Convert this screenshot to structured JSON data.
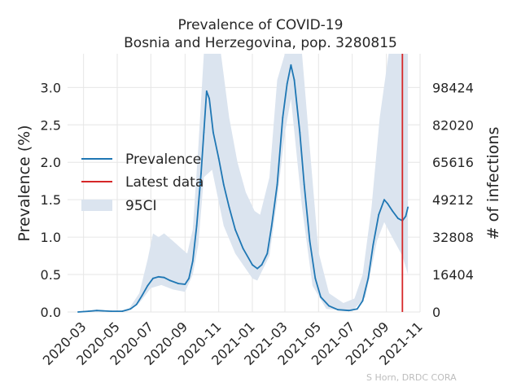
{
  "chart_data": {
    "type": "line",
    "title": "Prevalence of COVID-19",
    "subtitle": "Bosnia and Herzegovina, pop. 3280815",
    "ylabel": "Prevalence (%)",
    "y2label": "# of infections",
    "credit": "S Horn, DRDC CORA",
    "xlim": [
      "2020-02-01",
      "2021-11-01"
    ],
    "ylim": [
      0,
      3.45
    ],
    "x_ticks": [
      "2020-03",
      "2020-05",
      "2020-07",
      "2020-09",
      "2020-11",
      "2021-01",
      "2021-03",
      "2021-05",
      "2021-07",
      "2021-09",
      "2021-11"
    ],
    "y_ticks": [
      "0.0",
      "0.5",
      "1.0",
      "1.5",
      "2.0",
      "2.5",
      "3.0"
    ],
    "y2_ticks": [
      "0",
      "16404",
      "32808",
      "49212",
      "65616",
      "82020",
      "98424"
    ],
    "grid": true,
    "legend_position": "center-left",
    "colors": {
      "prevalence": "#1f77b4",
      "latest": "#d62728",
      "ci": "#dbe4ef",
      "background": "#ffffff",
      "grid": "#e6e6e6"
    },
    "latest_date": "2021-09-30",
    "series": [
      {
        "name": "Prevalence",
        "points": [
          [
            "2020-02-20",
            0.0
          ],
          [
            "2020-03-10",
            0.01
          ],
          [
            "2020-03-25",
            0.02
          ],
          [
            "2020-04-20",
            0.01
          ],
          [
            "2020-05-10",
            0.01
          ],
          [
            "2020-05-25",
            0.04
          ],
          [
            "2020-06-05",
            0.1
          ],
          [
            "2020-06-15",
            0.22
          ],
          [
            "2020-06-25",
            0.35
          ],
          [
            "2020-07-05",
            0.45
          ],
          [
            "2020-07-15",
            0.47
          ],
          [
            "2020-07-25",
            0.46
          ],
          [
            "2020-08-05",
            0.42
          ],
          [
            "2020-08-20",
            0.38
          ],
          [
            "2020-09-01",
            0.37
          ],
          [
            "2020-09-08",
            0.45
          ],
          [
            "2020-09-15",
            0.68
          ],
          [
            "2020-09-22",
            1.15
          ],
          [
            "2020-09-30",
            1.85
          ],
          [
            "2020-10-05",
            2.4
          ],
          [
            "2020-10-10",
            2.95
          ],
          [
            "2020-10-15",
            2.85
          ],
          [
            "2020-10-22",
            2.4
          ],
          [
            "2020-11-01",
            2.05
          ],
          [
            "2020-11-10",
            1.7
          ],
          [
            "2020-11-20",
            1.4
          ],
          [
            "2020-12-01",
            1.1
          ],
          [
            "2020-12-15",
            0.85
          ],
          [
            "2021-01-01",
            0.63
          ],
          [
            "2021-01-10",
            0.58
          ],
          [
            "2021-01-18",
            0.63
          ],
          [
            "2021-01-28",
            0.78
          ],
          [
            "2021-02-05",
            1.15
          ],
          [
            "2021-02-15",
            1.7
          ],
          [
            "2021-02-25",
            2.6
          ],
          [
            "2021-03-05",
            3.05
          ],
          [
            "2021-03-12",
            3.3
          ],
          [
            "2021-03-18",
            3.1
          ],
          [
            "2021-03-28",
            2.4
          ],
          [
            "2021-04-05",
            1.7
          ],
          [
            "2021-04-15",
            0.95
          ],
          [
            "2021-04-25",
            0.45
          ],
          [
            "2021-05-05",
            0.2
          ],
          [
            "2021-05-20",
            0.08
          ],
          [
            "2021-06-05",
            0.03
          ],
          [
            "2021-06-25",
            0.02
          ],
          [
            "2021-07-10",
            0.04
          ],
          [
            "2021-07-20",
            0.15
          ],
          [
            "2021-07-30",
            0.45
          ],
          [
            "2021-08-08",
            0.9
          ],
          [
            "2021-08-18",
            1.3
          ],
          [
            "2021-08-28",
            1.5
          ],
          [
            "2021-09-03",
            1.45
          ],
          [
            "2021-09-12",
            1.35
          ],
          [
            "2021-09-22",
            1.25
          ],
          [
            "2021-09-30",
            1.22
          ],
          [
            "2021-10-06",
            1.28
          ],
          [
            "2021-10-10",
            1.4
          ]
        ]
      },
      {
        "name": "Latest data"
      },
      {
        "name": "95CI",
        "lower": [
          [
            "2020-02-20",
            0.0
          ],
          [
            "2020-05-20",
            0.01
          ],
          [
            "2020-06-10",
            0.12
          ],
          [
            "2020-07-01",
            0.32
          ],
          [
            "2020-07-20",
            0.36
          ],
          [
            "2020-08-10",
            0.3
          ],
          [
            "2020-09-01",
            0.27
          ],
          [
            "2020-09-15",
            0.5
          ],
          [
            "2020-09-25",
            0.9
          ],
          [
            "2020-10-05",
            1.8
          ],
          [
            "2020-10-20",
            1.9
          ],
          [
            "2020-11-10",
            1.15
          ],
          [
            "2020-12-01",
            0.78
          ],
          [
            "2021-01-01",
            0.45
          ],
          [
            "2021-01-10",
            0.42
          ],
          [
            "2021-02-01",
            0.75
          ],
          [
            "2021-02-15",
            1.5
          ],
          [
            "2021-03-01",
            2.4
          ],
          [
            "2021-03-12",
            2.85
          ],
          [
            "2021-04-01",
            1.4
          ],
          [
            "2021-04-20",
            0.35
          ],
          [
            "2021-05-15",
            0.04
          ],
          [
            "2021-07-01",
            0.01
          ],
          [
            "2021-07-25",
            0.2
          ],
          [
            "2021-08-15",
            0.95
          ],
          [
            "2021-08-28",
            1.2
          ],
          [
            "2021-09-15",
            0.95
          ],
          [
            "2021-09-30",
            0.75
          ],
          [
            "2021-10-10",
            0.5
          ]
        ],
        "upper": [
          [
            "2020-02-20",
            0.0
          ],
          [
            "2020-05-20",
            0.02
          ],
          [
            "2020-06-10",
            0.25
          ],
          [
            "2020-06-25",
            0.7
          ],
          [
            "2020-07-05",
            1.05
          ],
          [
            "2020-07-15",
            1.0
          ],
          [
            "2020-07-25",
            1.05
          ],
          [
            "2020-08-10",
            0.95
          ],
          [
            "2020-08-25",
            0.85
          ],
          [
            "2020-09-05",
            0.78
          ],
          [
            "2020-09-15",
            1.1
          ],
          [
            "2020-09-25",
            2.2
          ],
          [
            "2020-10-05",
            3.45
          ],
          [
            "2020-10-20",
            3.45
          ],
          [
            "2020-11-05",
            3.45
          ],
          [
            "2020-11-20",
            2.6
          ],
          [
            "2020-12-05",
            2.0
          ],
          [
            "2020-12-20",
            1.6
          ],
          [
            "2021-01-05",
            1.35
          ],
          [
            "2021-01-15",
            1.3
          ],
          [
            "2021-02-01",
            1.8
          ],
          [
            "2021-02-15",
            3.1
          ],
          [
            "2021-03-01",
            3.45
          ],
          [
            "2021-04-01",
            3.45
          ],
          [
            "2021-04-15",
            2.2
          ],
          [
            "2021-05-01",
            0.8
          ],
          [
            "2021-05-20",
            0.25
          ],
          [
            "2021-06-15",
            0.12
          ],
          [
            "2021-07-05",
            0.18
          ],
          [
            "2021-07-20",
            0.5
          ],
          [
            "2021-08-05",
            1.4
          ],
          [
            "2021-08-20",
            2.6
          ],
          [
            "2021-09-05",
            3.45
          ],
          [
            "2021-10-10",
            3.45
          ]
        ]
      }
    ]
  }
}
